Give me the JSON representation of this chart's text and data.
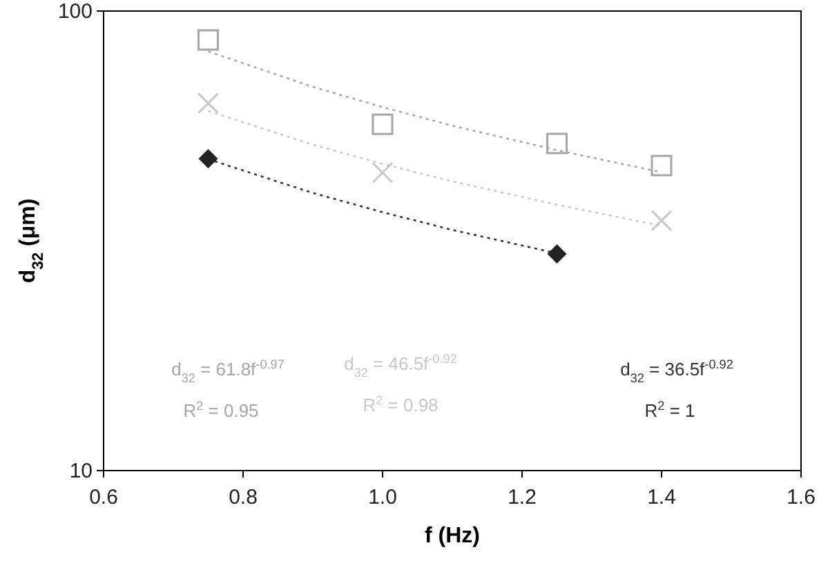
{
  "chart_data": {
    "type": "scatter",
    "xlabel": "f (Hz)",
    "ylabel": "d$_{32}$ (μm)",
    "log": "y",
    "xlim": [
      0.6,
      1.6
    ],
    "xticks": [
      0.6,
      0.8,
      {
        "value": 1,
        "label": "1.0"
      },
      1.2,
      1.4,
      1.6
    ],
    "ylim": [
      10,
      100
    ],
    "yticks": [
      10,
      100
    ],
    "series": [
      {
        "type": "line",
        "color": "#a6a6a6",
        "line_style": "dotted",
        "marker": "none",
        "x": [
          0.75,
          0.9,
          1.0,
          1.1,
          1.25,
          1.4
        ],
        "values": [
          81.7,
          68.4,
          61.8,
          56.3,
          49.8,
          44.6
        ]
      },
      {
        "type": "line",
        "color": "#c8c8c8",
        "line_style": "dotted",
        "marker": "none",
        "x": [
          0.75,
          0.9,
          1.0,
          1.1,
          1.25,
          1.4
        ],
        "values": [
          60.6,
          51.2,
          46.5,
          42.6,
          37.9,
          34.1
        ]
      },
      {
        "type": "line",
        "color": "#333333",
        "line_style": "dotted",
        "marker": "none",
        "x": [
          0.75,
          0.9,
          1.0,
          1.1,
          1.25
        ],
        "values": [
          47.6,
          40.2,
          36.5,
          33.4,
          29.7
        ]
      },
      {
        "color": "#a6a6a6",
        "marker": "square",
        "x": [
          0.75,
          1.0,
          1.25,
          1.4
        ],
        "values": [
          86.5,
          56.7,
          51.5,
          46.1
        ]
      },
      {
        "color": "#c8c8c8",
        "marker": "cross",
        "x": [
          0.75,
          1.0,
          1.4
        ],
        "values": [
          63,
          44.5,
          35
        ]
      },
      {
        "color": "#222222",
        "marker": "diamond",
        "x": [
          0.75,
          1.25
        ],
        "values": [
          47.7,
          29.6
        ]
      }
    ],
    "annotations": [
      "d$_{32}$ = 61.8f$^{-0.97}$",
      "R$^{2}$ = 0.95",
      "d$_{32}$ = 46.5f$^{-0.92}$",
      "R$^{2}$ = 0.98",
      "d$_{32}$ = 36.5f$^{-0.92}$",
      "R$^{2}$ = 1"
    ]
  }
}
